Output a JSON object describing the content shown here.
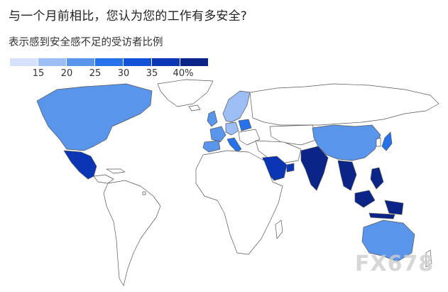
{
  "title": "与一个月前相比，您认为您的工作有多安全?",
  "subtitle": "表示感到安全感不足的受访者比例",
  "legend": {
    "ticks": [
      "15",
      "20",
      "25",
      "30",
      "35",
      "40%"
    ],
    "colors": [
      "#d6e2fb",
      "#9dbef5",
      "#5a95ec",
      "#2672ea",
      "#1351d8",
      "#0a35b4",
      "#0a2488"
    ]
  },
  "watermark": "FX678",
  "map_data": {
    "metric": "表示感到安全感不足的受访者比例",
    "regions": [
      {
        "region": "north-america",
        "level": 2
      },
      {
        "region": "mexico",
        "level": 5
      },
      {
        "region": "australia",
        "level": 2
      },
      {
        "region": "china",
        "level": 2
      },
      {
        "region": "india",
        "level": 6
      },
      {
        "region": "saudi-arabia",
        "level": 5
      },
      {
        "region": "uae",
        "level": 5
      },
      {
        "region": "southeast-asia",
        "level": 6
      },
      {
        "region": "japan",
        "level": 3
      },
      {
        "region": "uk",
        "level": 2
      },
      {
        "region": "france",
        "level": 2
      },
      {
        "region": "spain",
        "level": 2
      },
      {
        "region": "germany",
        "level": 1
      },
      {
        "region": "poland",
        "level": 3
      },
      {
        "region": "scandinavia",
        "level": 1
      },
      {
        "region": "italy",
        "level": 3
      },
      {
        "region": "philippines",
        "level": 6
      }
    ]
  }
}
